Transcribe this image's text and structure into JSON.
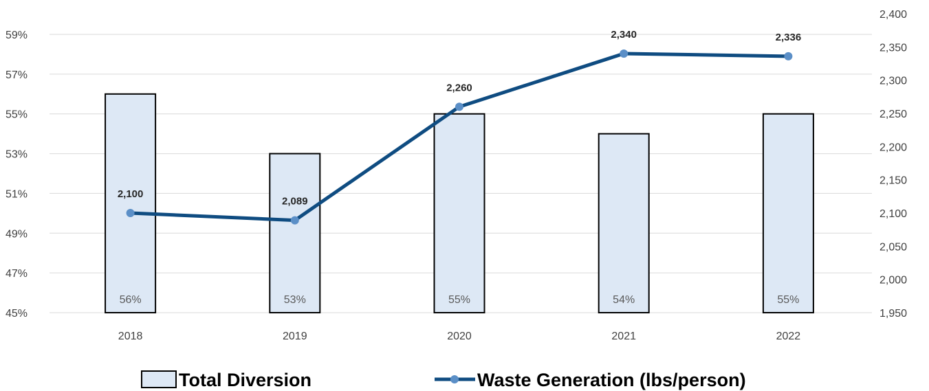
{
  "chart_data": {
    "type": "bar",
    "categories": [
      "2018",
      "2019",
      "2020",
      "2021",
      "2022"
    ],
    "series": [
      {
        "name": "Total Diversion",
        "type": "bar",
        "axis": "left",
        "values": [
          56,
          53,
          55,
          54,
          55
        ],
        "labels": [
          "56%",
          "53%",
          "55%",
          "54%",
          "55%"
        ]
      },
      {
        "name": "Waste Generation (lbs/person)",
        "type": "line",
        "axis": "right",
        "values": [
          2100,
          2089,
          2260,
          2340,
          2336
        ],
        "labels": [
          "2,100",
          "2,089",
          "2,260",
          "2,340",
          "2,336"
        ]
      }
    ],
    "y_left": {
      "ylim": [
        45,
        59
      ],
      "ticks": [
        45,
        47,
        49,
        51,
        53,
        55,
        57,
        59
      ],
      "tick_labels": [
        "45%",
        "47%",
        "49%",
        "51%",
        "53%",
        "55%",
        "57%",
        "59%"
      ]
    },
    "y_right": {
      "ylim": [
        1950,
        2400
      ],
      "ticks": [
        1950,
        2000,
        2050,
        2100,
        2150,
        2200,
        2250,
        2300,
        2350,
        2400
      ],
      "tick_labels": [
        "1,950",
        "2,000",
        "2,050",
        "2,100",
        "2,150",
        "2,200",
        "2,250",
        "2,300",
        "2,350",
        "2,400"
      ]
    },
    "grid": true,
    "legend": {
      "position": "bottom"
    },
    "colors": {
      "bar_fill": "#dde8f5",
      "bar_stroke": "#000000",
      "line": "#0f4c81",
      "marker": "#5b8fc7",
      "grid": "#d9d9d9"
    }
  }
}
